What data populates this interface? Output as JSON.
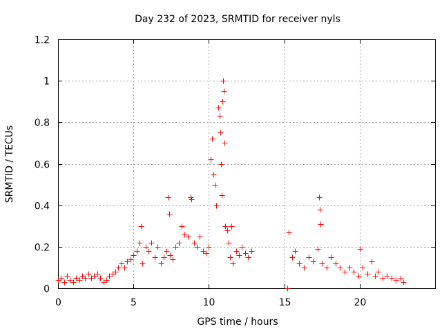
{
  "chart_data": {
    "type": "scatter",
    "title": "Day 232 of 2023, SRMTID for receiver nyls",
    "xlabel": "GPS time / hours",
    "ylabel": "SRMTID / TECUs",
    "xlim": [
      0,
      25
    ],
    "ylim": [
      0,
      1.2
    ],
    "xticks": [
      0,
      5,
      10,
      15,
      20
    ],
    "xtick_labels": [
      "0",
      "5",
      "10",
      "15",
      "20"
    ],
    "yticks": [
      0,
      0.2,
      0.4,
      0.6,
      0.8,
      1,
      1.2
    ],
    "ytick_labels": [
      "0",
      "0.2",
      "0.4",
      "0.6",
      "0.8",
      "1",
      "1.2"
    ],
    "grid": true,
    "marker": "+",
    "series": [
      {
        "name": "SRMTID",
        "color": "#ff0000",
        "x": [
          0.0,
          0.2,
          0.4,
          0.6,
          0.8,
          1.0,
          1.2,
          1.4,
          1.6,
          1.8,
          2.0,
          2.2,
          2.4,
          2.6,
          2.8,
          3.0,
          3.2,
          3.4,
          3.6,
          3.8,
          4.0,
          4.2,
          4.4,
          4.6,
          4.8,
          5.0,
          5.2,
          5.4,
          5.5,
          5.6,
          5.8,
          6.0,
          6.2,
          6.4,
          6.6,
          6.8,
          7.0,
          7.2,
          7.3,
          7.35,
          7.4,
          7.6,
          7.8,
          8.0,
          8.2,
          8.4,
          8.6,
          8.8,
          8.85,
          9.0,
          9.2,
          9.4,
          9.6,
          9.8,
          10.0,
          10.1,
          10.2,
          10.3,
          10.4,
          10.5,
          10.6,
          10.7,
          10.75,
          10.8,
          10.85,
          10.9,
          10.95,
          11.0,
          11.05,
          11.1,
          11.2,
          11.3,
          11.4,
          11.5,
          11.6,
          11.8,
          12.0,
          12.2,
          12.4,
          12.6,
          12.8,
          15.2,
          15.3,
          15.5,
          15.7,
          16.0,
          16.3,
          16.6,
          16.9,
          17.2,
          17.3,
          17.35,
          17.4,
          17.5,
          17.8,
          18.1,
          18.4,
          18.7,
          19.0,
          19.3,
          19.6,
          19.9,
          20.0,
          20.2,
          20.5,
          20.8,
          21.0,
          21.2,
          21.5,
          21.8,
          22.1,
          22.4,
          22.7,
          22.9
        ],
        "y": [
          0.04,
          0.05,
          0.03,
          0.06,
          0.04,
          0.03,
          0.05,
          0.04,
          0.06,
          0.05,
          0.07,
          0.05,
          0.06,
          0.07,
          0.05,
          0.03,
          0.04,
          0.06,
          0.07,
          0.08,
          0.1,
          0.12,
          0.1,
          0.13,
          0.14,
          0.16,
          0.18,
          0.22,
          0.3,
          0.12,
          0.2,
          0.18,
          0.22,
          0.15,
          0.2,
          0.12,
          0.15,
          0.18,
          0.44,
          0.36,
          0.16,
          0.14,
          0.2,
          0.22,
          0.3,
          0.26,
          0.25,
          0.44,
          0.43,
          0.22,
          0.2,
          0.25,
          0.18,
          0.17,
          0.2,
          0.62,
          0.72,
          0.55,
          0.5,
          0.4,
          0.87,
          0.83,
          0.75,
          0.6,
          0.45,
          0.9,
          1.0,
          0.95,
          0.7,
          0.3,
          0.28,
          0.22,
          0.15,
          0.3,
          0.12,
          0.18,
          0.16,
          0.2,
          0.17,
          0.15,
          0.18,
          0.0,
          0.27,
          0.15,
          0.18,
          0.12,
          0.1,
          0.15,
          0.13,
          0.19,
          0.44,
          0.38,
          0.31,
          0.12,
          0.1,
          0.15,
          0.12,
          0.1,
          0.08,
          0.1,
          0.08,
          0.06,
          0.19,
          0.1,
          0.07,
          0.13,
          0.06,
          0.08,
          0.05,
          0.06,
          0.05,
          0.04,
          0.05,
          0.03
        ]
      }
    ]
  }
}
